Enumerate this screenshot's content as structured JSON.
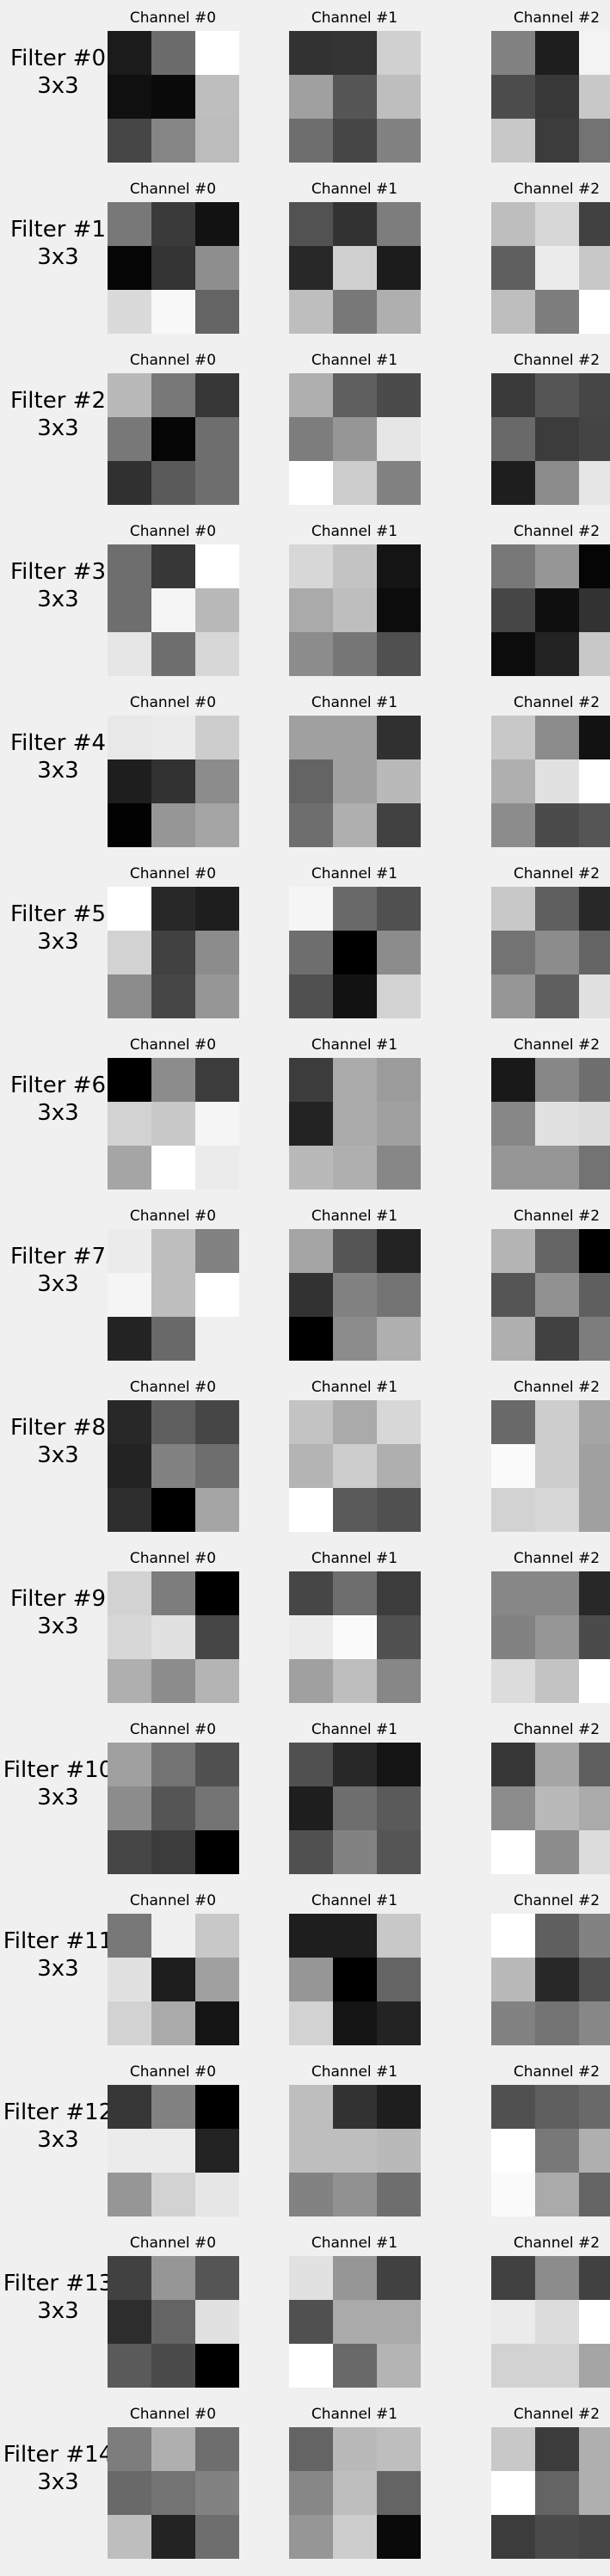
{
  "figure": {
    "background": "#f0f0f0"
  },
  "chart_data": {
    "type": "heatmap",
    "colormap": "gray",
    "value_range": [
      0,
      255
    ],
    "channel_titles": [
      "Channel #0",
      "Channel #1",
      "Channel #2"
    ],
    "filters": [
      {
        "name": "Filter #0",
        "size": "3x3",
        "channels": [
          [
            [
              27,
              108,
              255
            ],
            [
              16,
              10,
              190
            ],
            [
              70,
              133,
              188
            ]
          ],
          [
            [
              50,
              52,
              208
            ],
            [
              160,
              86,
              190
            ],
            [
              110,
              70,
              130
            ]
          ],
          [
            [
              130,
              30,
              243
            ],
            [
              76,
              56,
              200
            ],
            [
              200,
              60,
              115
            ]
          ]
        ]
      },
      {
        "name": "Filter #1",
        "size": "3x3",
        "channels": [
          [
            [
              120,
              58,
              18
            ],
            [
              5,
              52,
              142
            ],
            [
              218,
              248,
              100
            ]
          ],
          [
            [
              82,
              50,
              125
            ],
            [
              40,
              208,
              28
            ],
            [
              190,
              120,
              175
            ]
          ],
          [
            [
              190,
              215,
              65
            ],
            [
              95,
              235,
              200
            ],
            [
              190,
              125,
              255
            ]
          ]
        ]
      },
      {
        "name": "Filter #2",
        "size": "3x3",
        "channels": [
          [
            [
              185,
              120,
              55
            ],
            [
              120,
              5,
              110
            ],
            [
              48,
              90,
              110
            ]
          ],
          [
            [
              175,
              95,
              75
            ],
            [
              125,
              150,
              230
            ],
            [
              255,
              205,
              130
            ]
          ],
          [
            [
              58,
              85,
              70
            ],
            [
              105,
              60,
              68
            ],
            [
              30,
              140,
              230
            ]
          ]
        ]
      },
      {
        "name": "Filter #3",
        "size": "3x3",
        "channels": [
          [
            [
              110,
              55,
              255
            ],
            [
              110,
              245,
              185
            ],
            [
              230,
              110,
              215
            ]
          ],
          [
            [
              215,
              195,
              20
            ],
            [
              170,
              190,
              12
            ],
            [
              140,
              118,
              80
            ]
          ],
          [
            [
              120,
              150,
              5
            ],
            [
              70,
              15,
              50
            ],
            [
              12,
              35,
              200
            ]
          ]
        ]
      },
      {
        "name": "Filter #4",
        "size": "3x3",
        "channels": [
          [
            [
              232,
              235,
              205
            ],
            [
              30,
              50,
              140
            ],
            [
              2,
              150,
              165
            ]
          ],
          [
            [
              160,
              160,
              48
            ],
            [
              100,
              160,
              185
            ],
            [
              110,
              175,
              65
            ]
          ],
          [
            [
              200,
              140,
              18
            ],
            [
              175,
              225,
              255
            ],
            [
              140,
              75,
              85
            ]
          ]
        ]
      },
      {
        "name": "Filter #5",
        "size": "3x3",
        "channels": [
          [
            [
              255,
              40,
              30
            ],
            [
              210,
              65,
              140
            ],
            [
              140,
              70,
              150
            ]
          ],
          [
            [
              245,
              105,
              80
            ],
            [
              110,
              0,
              140
            ],
            [
              80,
              18,
              210
            ]
          ],
          [
            [
              200,
              95,
              40
            ],
            [
              115,
              140,
              100
            ],
            [
              150,
              95,
              225
            ]
          ]
        ]
      },
      {
        "name": "Filter #6",
        "size": "3x3",
        "channels": [
          [
            [
              0,
              140,
              60
            ],
            [
              210,
              200,
              245
            ],
            [
              165,
              255,
              235
            ]
          ],
          [
            [
              60,
              170,
              155
            ],
            [
              35,
              170,
              160
            ],
            [
              185,
              175,
              135
            ]
          ],
          [
            [
              25,
              135,
              110
            ],
            [
              135,
              225,
              220
            ],
            [
              150,
              150,
              115
            ]
          ]
        ]
      },
      {
        "name": "Filter #7",
        "size": "3x3",
        "channels": [
          [
            [
              235,
              190,
              130
            ],
            [
              245,
              190,
              255
            ],
            [
              35,
              105,
              240
            ]
          ],
          [
            [
              165,
              85,
              35
            ],
            [
              50,
              130,
              115
            ],
            [
              0,
              140,
              175
            ]
          ],
          [
            [
              180,
              100,
              0
            ],
            [
              85,
              145,
              95
            ],
            [
              175,
              65,
              125
            ]
          ]
        ]
      },
      {
        "name": "Filter #8",
        "size": "3x3",
        "channels": [
          [
            [
              40,
              95,
              70
            ],
            [
              35,
              130,
              110
            ],
            [
              45,
              0,
              165
            ]
          ],
          [
            [
              195,
              170,
              215
            ],
            [
              180,
              205,
              175
            ],
            [
              255,
              90,
              80
            ]
          ],
          [
            [
              105,
              205,
              165
            ],
            [
              250,
              205,
              160
            ],
            [
              210,
              215,
              160
            ]
          ]
        ]
      },
      {
        "name": "Filter #9",
        "size": "3x3",
        "channels": [
          [
            [
              210,
              125,
              0
            ],
            [
              215,
              225,
              70
            ],
            [
              175,
              140,
              180
            ]
          ],
          [
            [
              70,
              110,
              60
            ],
            [
              235,
              250,
              80
            ],
            [
              160,
              190,
              135
            ]
          ],
          [
            [
              135,
              135,
              40
            ],
            [
              130,
              150,
              75
            ],
            [
              220,
              195,
              255
            ]
          ]
        ]
      },
      {
        "name": "Filter #10",
        "size": "3x3",
        "channels": [
          [
            [
              160,
              115,
              80
            ],
            [
              140,
              85,
              115
            ],
            [
              70,
              60,
              0
            ]
          ],
          [
            [
              80,
              40,
              20
            ],
            [
              30,
              110,
              90
            ],
            [
              80,
              130,
              85
            ]
          ],
          [
            [
              55,
              165,
              95
            ],
            [
              140,
              185,
              170
            ],
            [
              255,
              140,
              220
            ]
          ]
        ]
      },
      {
        "name": "Filter #11",
        "size": "3x3",
        "channels": [
          [
            [
              120,
              240,
              200
            ],
            [
              225,
              30,
              160
            ],
            [
              210,
              170,
              20
            ]
          ],
          [
            [
              30,
              30,
              200
            ],
            [
              150,
              0,
              100
            ],
            [
              210,
              20,
              35
            ]
          ],
          [
            [
              255,
              95,
              130
            ],
            [
              185,
              40,
              80
            ],
            [
              130,
              115,
              135
            ]
          ]
        ]
      },
      {
        "name": "Filter #12",
        "size": "3x3",
        "channels": [
          [
            [
              55,
              130,
              0
            ],
            [
              235,
              235,
              35
            ],
            [
              150,
              210,
              230
            ]
          ],
          [
            [
              190,
              50,
              30
            ],
            [
              190,
              190,
              185
            ],
            [
              130,
              145,
              110
            ]
          ],
          [
            [
              80,
              95,
              105
            ],
            [
              255,
              120,
              175
            ],
            [
              250,
              170,
              100
            ]
          ]
        ]
      },
      {
        "name": "Filter #13",
        "size": "3x3",
        "channels": [
          [
            [
              65,
              150,
              85
            ],
            [
              45,
              100,
              225
            ],
            [
              90,
              75,
              0
            ]
          ],
          [
            [
              225,
              150,
              65
            ],
            [
              80,
              170,
              170
            ],
            [
              255,
              105,
              180
            ]
          ],
          [
            [
              65,
              140,
              65
            ],
            [
              235,
              220,
              255
            ],
            [
              210,
              210,
              165
            ]
          ]
        ]
      },
      {
        "name": "Filter #14",
        "size": "3x3",
        "channels": [
          [
            [
              125,
              175,
              110
            ],
            [
              105,
              115,
              130
            ],
            [
              190,
              35,
              110
            ]
          ],
          [
            [
              100,
              185,
              190
            ],
            [
              135,
              190,
              100
            ],
            [
              150,
              205,
              10
            ]
          ],
          [
            [
              200,
              60,
              175
            ],
            [
              255,
              100,
              175
            ],
            [
              60,
              75,
              70
            ]
          ]
        ]
      }
    ]
  }
}
